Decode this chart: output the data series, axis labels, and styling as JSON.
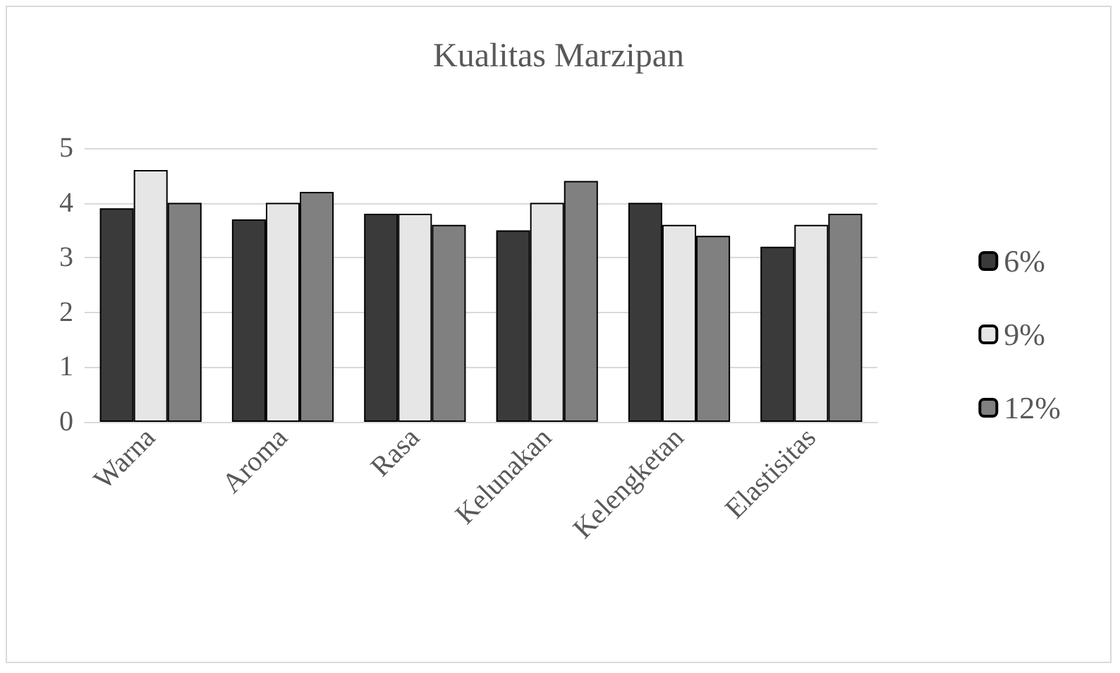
{
  "chart_data": {
    "type": "bar",
    "title": "Kualitas Marzipan",
    "categories": [
      "Warna",
      "Aroma",
      "Rasa",
      "Kelunakan",
      "Kelengketan",
      "Elastisitas"
    ],
    "series": [
      {
        "name": "6%",
        "color": "#3a3a3a",
        "values": [
          3.9,
          3.7,
          3.8,
          3.5,
          4.0,
          3.2
        ]
      },
      {
        "name": "9%",
        "color": "#e6e6e6",
        "values": [
          4.6,
          4.0,
          3.8,
          4.0,
          3.6,
          3.6
        ]
      },
      {
        "name": "12%",
        "color": "#808080",
        "values": [
          4.0,
          4.2,
          3.6,
          4.4,
          3.4,
          3.8
        ]
      }
    ],
    "ylim": [
      0,
      5
    ],
    "yticks": [
      0,
      1,
      2,
      3,
      4,
      5
    ],
    "grid": "y",
    "legend": "right"
  }
}
